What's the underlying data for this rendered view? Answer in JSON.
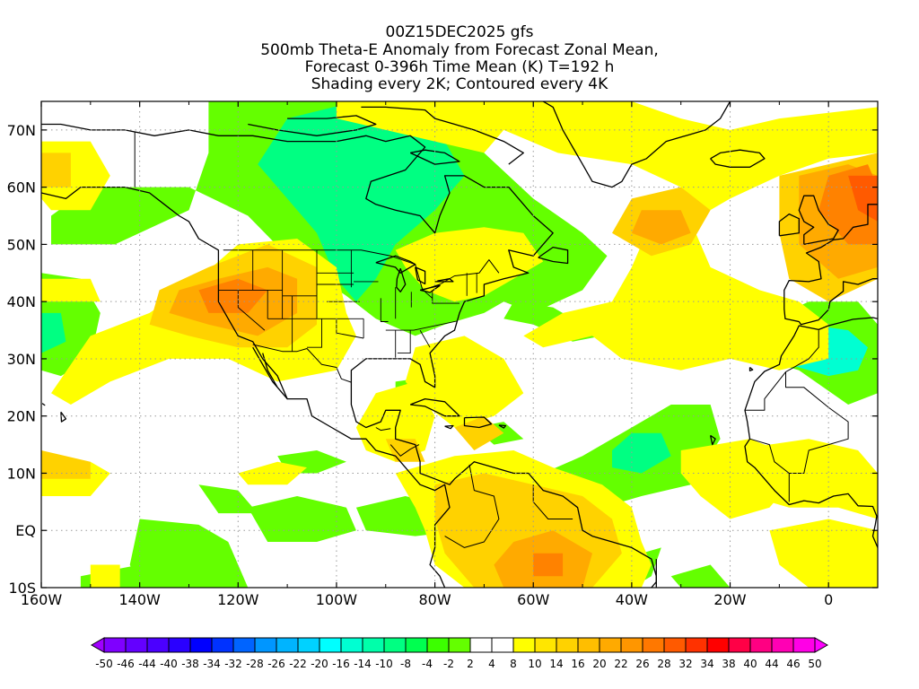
{
  "title_lines": [
    "00Z15DEC2025 gfs",
    "500mb Theta-E Anomaly from Forecast Zonal Mean,",
    "Forecast 0-396h Time Mean (K) T=192 h",
    "Shading every 2K; Contoured every 4K"
  ],
  "chart_data": {
    "type": "heatmap",
    "x_ticks": [
      "160W",
      "140W",
      "120W",
      "100W",
      "80W",
      "60W",
      "40W",
      "20W",
      "0"
    ],
    "x_tick_values": [
      -160,
      -140,
      -120,
      -100,
      -80,
      -60,
      -40,
      -20,
      0
    ],
    "y_ticks": [
      "70N",
      "60N",
      "50N",
      "40N",
      "30N",
      "20N",
      "10N",
      "EQ",
      "10S"
    ],
    "y_tick_values": [
      70,
      60,
      50,
      40,
      30,
      20,
      10,
      0,
      -10
    ],
    "lon_range": [
      -160,
      10
    ],
    "lat_range": [
      -10,
      75
    ],
    "grid": true,
    "colorbar": {
      "labels": [
        "-50",
        "-46",
        "-44",
        "-40",
        "-38",
        "-34",
        "-32",
        "-28",
        "-26",
        "-22",
        "-20",
        "-16",
        "-14",
        "-10",
        "-8",
        "-4",
        "-2",
        "2",
        "4",
        "8",
        "10",
        "14",
        "16",
        "20",
        "22",
        "26",
        "28",
        "32",
        "34",
        "38",
        "40",
        "44",
        "46",
        "50"
      ],
      "colors": [
        "#a000ff",
        "#7f00ff",
        "#6400ff",
        "#4b00ff",
        "#2a00ff",
        "#0000ff",
        "#0032ff",
        "#0064ff",
        "#0096ff",
        "#00b4ff",
        "#00d2ff",
        "#00ffff",
        "#00ffd2",
        "#00ffaa",
        "#00ff82",
        "#00ff50",
        "#3cff00",
        "#64ff00",
        "#ffffff",
        "#ffffff",
        "#ffff00",
        "#ffe600",
        "#ffd200",
        "#ffbe00",
        "#ffaa00",
        "#ff9600",
        "#ff7800",
        "#ff5a00",
        "#ff3200",
        "#ff0000",
        "#ff0046",
        "#ff0082",
        "#ff00b4",
        "#ff00e6",
        "#ff00ff"
      ]
    },
    "shading_colors": {
      "green": "#64ff00",
      "green2": "#3cff00",
      "teal": "#00ff82",
      "cyan": "#00ffd2",
      "yellow": "#ffff00",
      "yellow2": "#ffe600",
      "gold": "#ffd200",
      "orange1": "#ffaa00",
      "orange2": "#ff8200",
      "orange3": "#ff5a00"
    }
  }
}
